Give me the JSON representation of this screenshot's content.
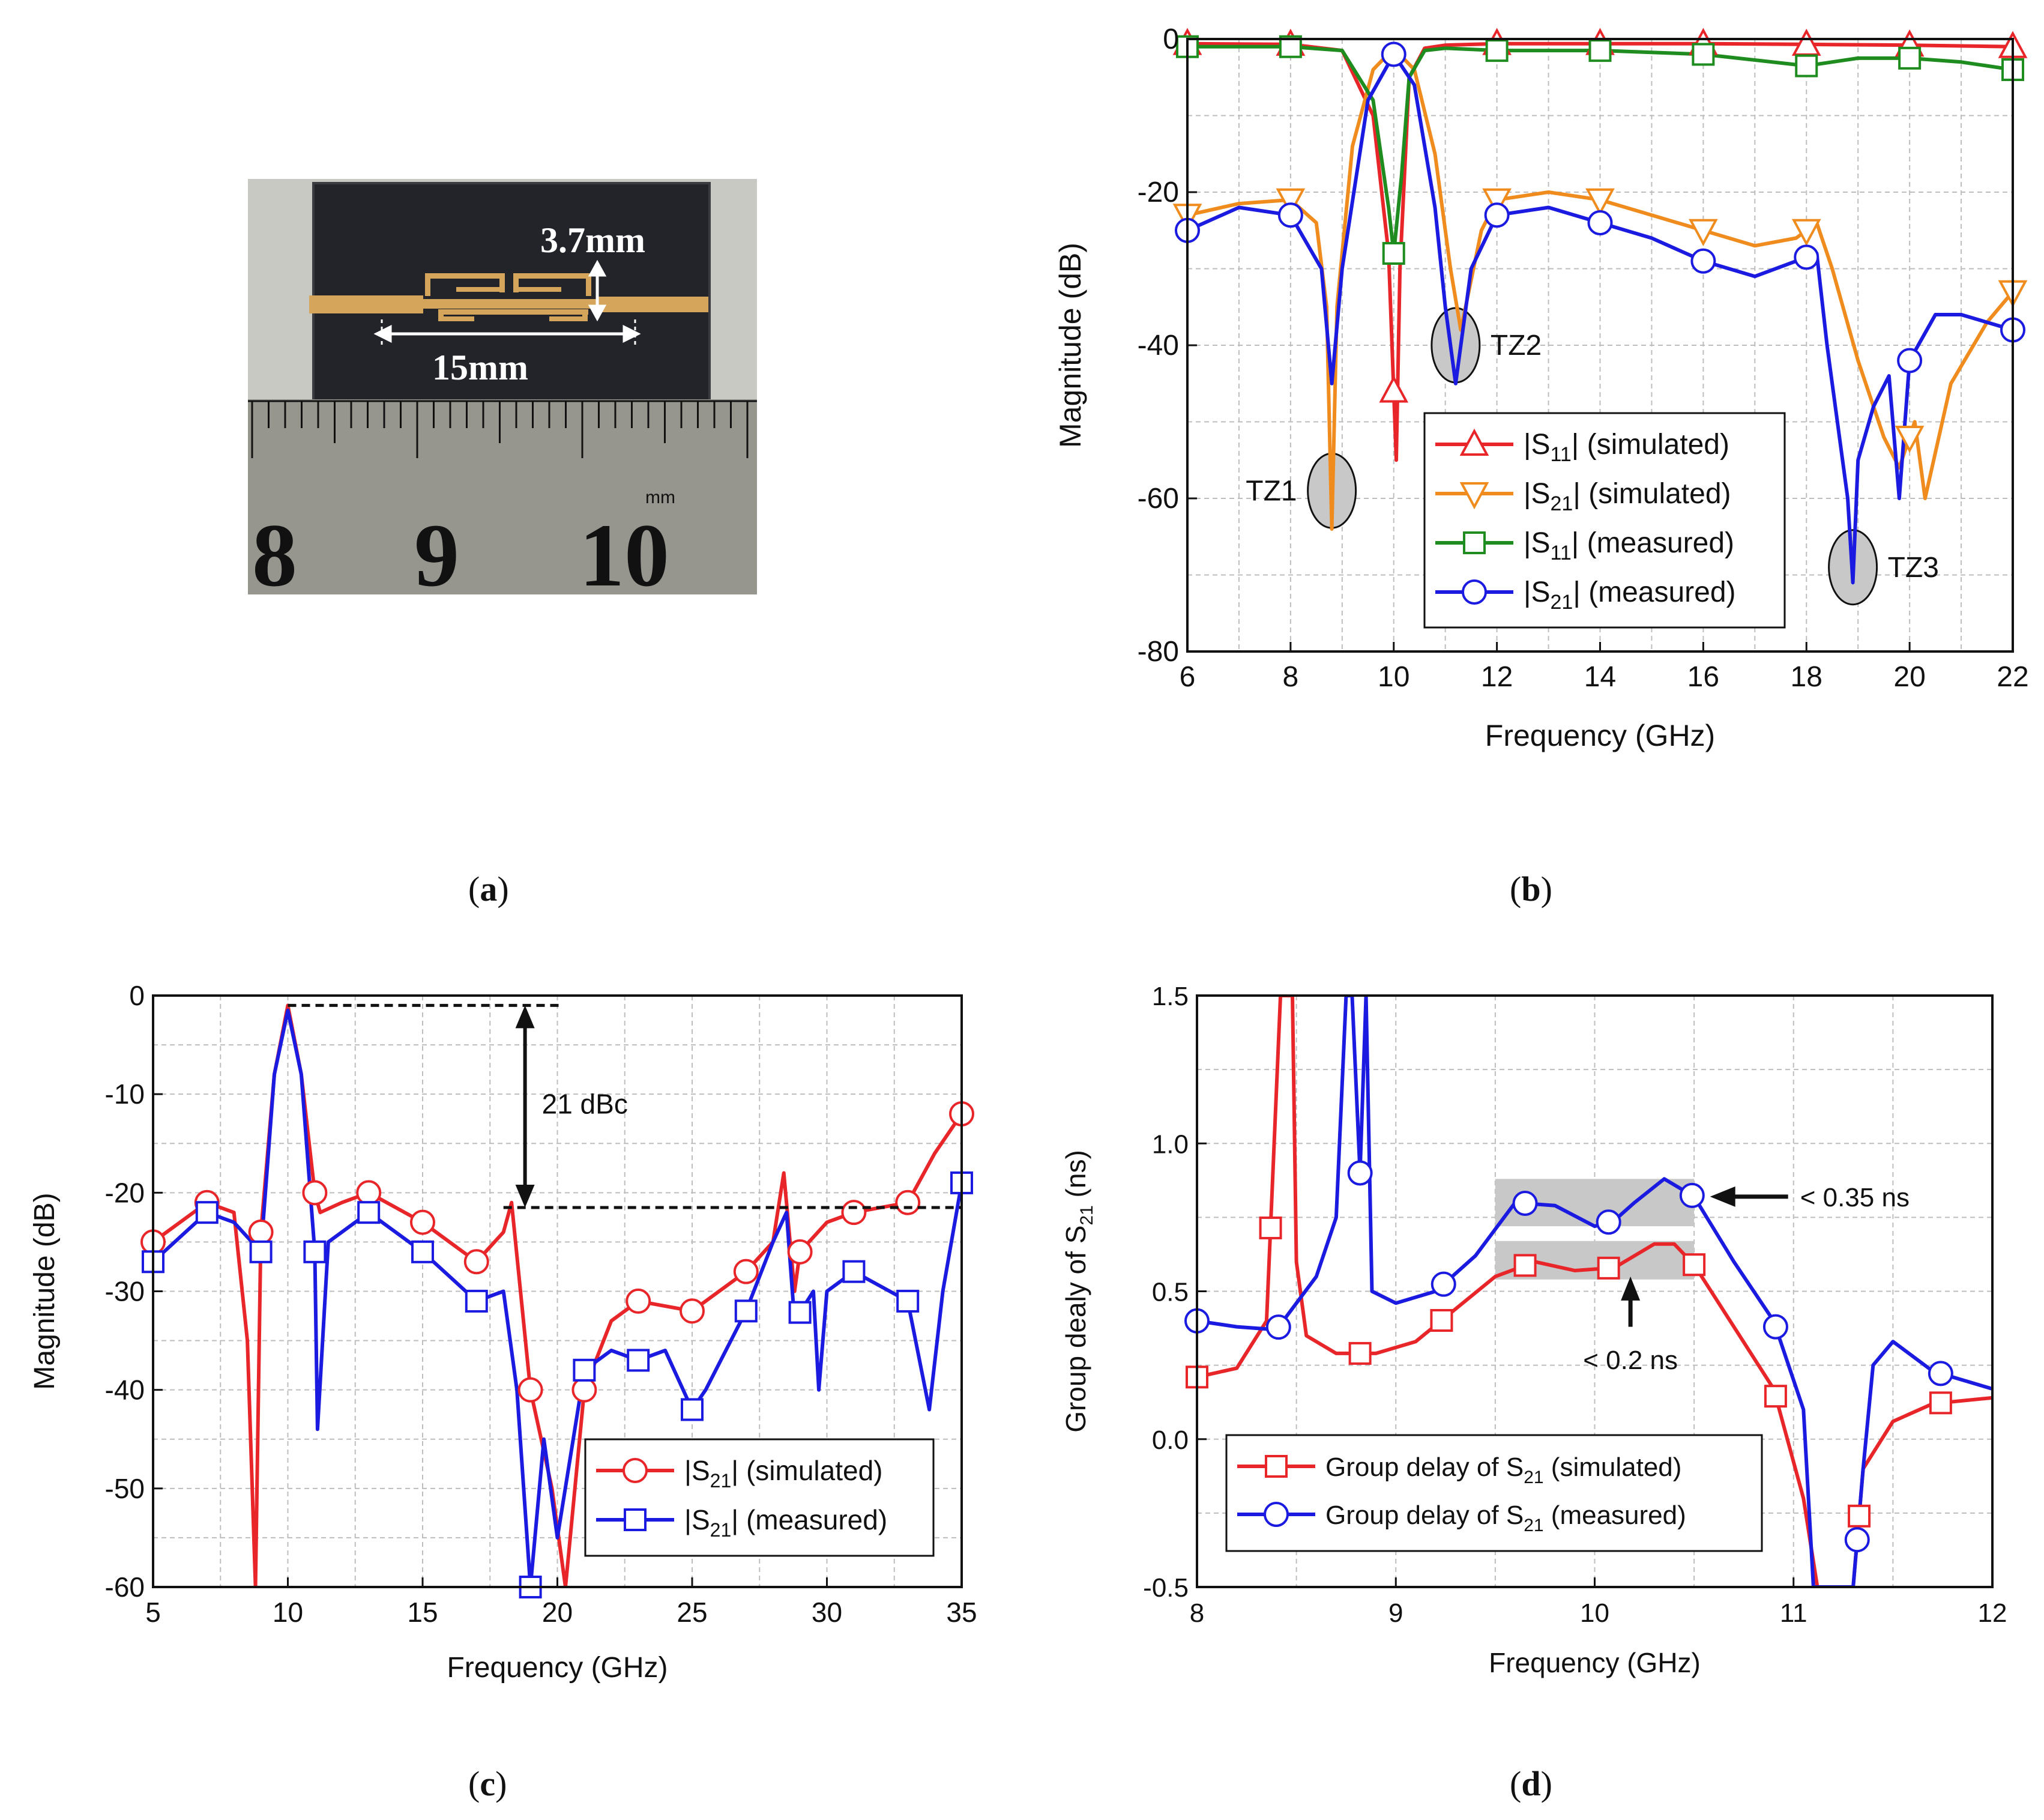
{
  "panel_labels": [
    "a",
    "b",
    "c",
    "d"
  ],
  "photo": {
    "dim_height": "3.7mm",
    "dim_length": "15mm",
    "ruler_unit": "mm",
    "ruler_numbers": [
      "8",
      "9",
      "10"
    ],
    "colors": {
      "board": "#22242a",
      "trace": "#d4a55a",
      "ruler": "#9a9a96",
      "background": "#cfcfcb"
    }
  },
  "chart_data": [
    {
      "id": "b",
      "type": "line",
      "xlabel": "Frequency (GHz)",
      "ylabel": "Magnitude (dB)",
      "xlim": [
        6,
        22
      ],
      "ylim": [
        -80,
        0
      ],
      "xticks": [
        6,
        8,
        10,
        12,
        14,
        16,
        18,
        20,
        22
      ],
      "yticks": [
        -80,
        -60,
        -40,
        -20,
        0
      ],
      "grid": true,
      "legend_position": "middle-right",
      "series": [
        {
          "name": "|S11| (simulated)",
          "sub": "11",
          "state": "(simulated)",
          "color": "#e8262a",
          "marker": "triangle-up",
          "x": [
            6,
            8,
            9,
            9.6,
            9.9,
            10.05,
            10.12,
            10.3,
            10.6,
            11,
            12,
            14,
            16,
            18,
            20,
            22
          ],
          "y": [
            -0.6,
            -0.7,
            -1.5,
            -10,
            -28,
            -55,
            -30,
            -5,
            -1.2,
            -0.8,
            -0.6,
            -0.6,
            -0.6,
            -0.7,
            -0.8,
            -1.0
          ],
          "markers_x": [
            6,
            8,
            10,
            12,
            14,
            16,
            18,
            20,
            22
          ]
        },
        {
          "name": "|S21| (simulated)",
          "sub": "21",
          "state": "(simulated)",
          "color": "#f08c1e",
          "marker": "triangle-down",
          "x": [
            6,
            7,
            8,
            8.5,
            8.7,
            8.8,
            8.9,
            9.2,
            9.6,
            10,
            10.4,
            10.8,
            11.1,
            11.3,
            11.7,
            12,
            13,
            14,
            15,
            16,
            17,
            17.8,
            18.2,
            18.5,
            19,
            19.5,
            19.8,
            20.1,
            20.3,
            20.8,
            21.5,
            22
          ],
          "y": [
            -23,
            -21.5,
            -21,
            -24,
            -35,
            -64,
            -35,
            -14,
            -4,
            -1.2,
            -4,
            -15,
            -30,
            -38,
            -25,
            -21,
            -20,
            -21,
            -23,
            -25,
            -27,
            -26,
            -24,
            -30,
            -42,
            -52,
            -56,
            -50,
            -60,
            -45,
            -37,
            -33
          ],
          "markers_x": [
            6,
            8,
            12,
            14,
            16,
            18,
            20,
            22
          ]
        },
        {
          "name": "|S11| (measured)",
          "sub": "11",
          "state": "(measured)",
          "color": "#1e8c1e",
          "marker": "square",
          "x": [
            6,
            8,
            9,
            9.6,
            9.9,
            10.0,
            10.15,
            10.3,
            10.6,
            11,
            12,
            14,
            16,
            18,
            19,
            20,
            21,
            22
          ],
          "y": [
            -1,
            -1,
            -1.5,
            -8,
            -22,
            -28,
            -18,
            -5,
            -1.5,
            -1.2,
            -1.5,
            -1.5,
            -2,
            -3.5,
            -2.5,
            -2.5,
            -3,
            -4
          ],
          "markers_x": [
            6,
            8,
            10,
            12,
            14,
            16,
            18,
            20,
            22
          ]
        },
        {
          "name": "|S21| (measured)",
          "sub": "21",
          "state": "(measured)",
          "color": "#1a1ae0",
          "marker": "circle",
          "x": [
            6,
            7,
            8,
            8.6,
            8.8,
            9.0,
            9.5,
            10,
            10.4,
            10.8,
            11.0,
            11.2,
            11.5,
            12,
            13,
            14,
            15,
            16,
            17,
            17.8,
            18.2,
            18.4,
            18.6,
            18.8,
            18.9,
            19.0,
            19.3,
            19.6,
            19.8,
            20,
            20.5,
            21,
            22
          ],
          "y": [
            -25,
            -22,
            -23,
            -30,
            -45,
            -30,
            -8,
            -2,
            -6,
            -22,
            -35,
            -45,
            -30,
            -23,
            -22,
            -24,
            -26,
            -29,
            -31,
            -29,
            -28,
            -40,
            -50,
            -60,
            -71,
            -55,
            -48,
            -44,
            -60,
            -42,
            -36,
            -36,
            -38
          ],
          "markers_x": [
            6,
            8,
            10,
            12,
            14,
            16,
            18,
            20,
            22
          ]
        }
      ],
      "annotations": [
        "TZ1",
        "TZ2",
        "TZ3"
      ]
    },
    {
      "id": "c",
      "type": "line",
      "xlabel": "Frequency (GHz)",
      "ylabel": "Magnitude (dB)",
      "xlim": [
        5,
        35
      ],
      "ylim": [
        -60,
        0
      ],
      "xticks": [
        5,
        10,
        15,
        20,
        25,
        30,
        35
      ],
      "yticks": [
        -60,
        -50,
        -40,
        -30,
        -20,
        -10,
        0
      ],
      "grid": true,
      "legend_position": "bottom-right",
      "series": [
        {
          "name": "|S21| (simulated)",
          "sub": "21",
          "state": "(simulated)",
          "color": "#e8262a",
          "marker": "circle",
          "x": [
            5,
            7,
            8,
            8.5,
            8.8,
            9,
            9.5,
            10,
            10.5,
            11,
            11.2,
            12,
            13,
            15,
            17,
            18,
            18.3,
            19,
            19.8,
            20.3,
            21,
            22,
            23,
            25,
            27,
            28,
            28.4,
            28.8,
            29,
            30,
            31,
            33,
            34,
            35
          ],
          "y": [
            -25,
            -21,
            -22,
            -35,
            -60,
            -24,
            -8,
            -1,
            -8,
            -20,
            -22,
            -21,
            -20,
            -23,
            -27,
            -24,
            -21,
            -40,
            -50,
            -60,
            -40,
            -33,
            -31,
            -32,
            -28,
            -25,
            -18,
            -30,
            -26,
            -23,
            -22,
            -21,
            -16,
            -12
          ],
          "markers_x": [
            5,
            7,
            9,
            11,
            13,
            15,
            17,
            19,
            21,
            23,
            25,
            27,
            29,
            31,
            33,
            35
          ]
        },
        {
          "name": "|S21| (measured)",
          "sub": "21",
          "state": "(measured)",
          "color": "#1a1ae0",
          "marker": "square",
          "x": [
            5,
            7,
            8,
            9,
            9.5,
            10,
            10.5,
            11,
            11.1,
            11.5,
            13,
            15,
            17,
            18,
            18.5,
            19,
            19.5,
            20,
            21,
            22,
            23,
            24,
            25,
            25.5,
            27,
            28,
            28.5,
            28.8,
            29.5,
            29.7,
            30,
            31,
            33,
            33.8,
            34.3,
            35
          ],
          "y": [
            -27,
            -22,
            -23,
            -26,
            -8,
            -1.5,
            -8,
            -26,
            -44,
            -25,
            -22,
            -26,
            -31,
            -30,
            -40,
            -60,
            -45,
            -55,
            -38,
            -36,
            -37,
            -36,
            -42,
            -40,
            -32,
            -25,
            -22,
            -33,
            -30,
            -40,
            -30,
            -28,
            -31,
            -42,
            -30,
            -19
          ],
          "markers_x": [
            5,
            7,
            9,
            11,
            13,
            15,
            17,
            19,
            21,
            23,
            25,
            27,
            29,
            31,
            33,
            35
          ]
        }
      ],
      "annotations": [
        "21 dBc"
      ]
    },
    {
      "id": "d",
      "type": "line",
      "xlabel": "Frequency (GHz)",
      "ylabel": "Group dealy of S21 (ns)",
      "ylabel_main": "Group dealy of S",
      "ylabel_sub": "21",
      "ylabel_end": " (ns)",
      "xlim": [
        8,
        12
      ],
      "ylim": [
        -0.5,
        1.5
      ],
      "xticks": [
        "8",
        "9",
        "10",
        "11",
        "12"
      ],
      "yticks": [
        "-0.5",
        "0.0",
        "0.5",
        "1.0",
        "1.5"
      ],
      "grid": true,
      "legend_position": "bottom-left",
      "series": [
        {
          "name": "Group delay of S21 (simulated)",
          "label": "Group delay of S",
          "sub": "21",
          "state": "(simulated)",
          "color": "#e8262a",
          "marker": "square",
          "x": [
            8,
            8.2,
            8.35,
            8.42,
            8.45,
            8.48,
            8.5,
            8.55,
            8.7,
            8.9,
            9.1,
            9.3,
            9.5,
            9.7,
            9.9,
            10.1,
            10.3,
            10.4,
            10.5,
            10.7,
            10.9,
            11.05,
            11.12,
            11.3,
            11.35,
            11.5,
            11.7,
            12
          ],
          "y": [
            0.21,
            0.24,
            0.4,
            1.5,
            1.5,
            1.5,
            0.6,
            0.35,
            0.29,
            0.29,
            0.33,
            0.44,
            0.55,
            0.6,
            0.57,
            0.58,
            0.66,
            0.66,
            0.59,
            0.38,
            0.17,
            -0.2,
            -0.5,
            -0.5,
            -0.1,
            0.06,
            0.12,
            0.14
          ],
          "markers_x": [
            8,
            8.37,
            8.82,
            9.23,
            9.65,
            10.07,
            10.5,
            10.91,
            11.33,
            11.74
          ]
        },
        {
          "name": "Group delay of S21 (measured)",
          "label": "Group delay of S",
          "sub": "21",
          "state": "(measured)",
          "color": "#1a1ae0",
          "marker": "circle",
          "x": [
            8,
            8.2,
            8.4,
            8.6,
            8.7,
            8.75,
            8.78,
            8.82,
            8.85,
            8.88,
            9,
            9.2,
            9.4,
            9.6,
            9.8,
            10,
            10.1,
            10.2,
            10.35,
            10.5,
            10.7,
            10.9,
            11.05,
            11.1,
            11.3,
            11.35,
            11.4,
            11.5,
            11.7,
            12
          ],
          "y": [
            0.4,
            0.38,
            0.37,
            0.55,
            0.75,
            1.5,
            1.5,
            0.9,
            1.5,
            0.5,
            0.46,
            0.5,
            0.62,
            0.8,
            0.79,
            0.72,
            0.74,
            0.8,
            0.88,
            0.82,
            0.6,
            0.4,
            0.1,
            -0.5,
            -0.5,
            -0.1,
            0.25,
            0.33,
            0.23,
            0.17
          ],
          "markers_x": [
            8,
            8.41,
            8.82,
            9.24,
            9.65,
            10.07,
            10.49,
            10.91,
            11.32,
            11.74
          ]
        }
      ],
      "annotations": [
        "< 0.35 ns",
        "< 0.2 ns"
      ]
    }
  ]
}
